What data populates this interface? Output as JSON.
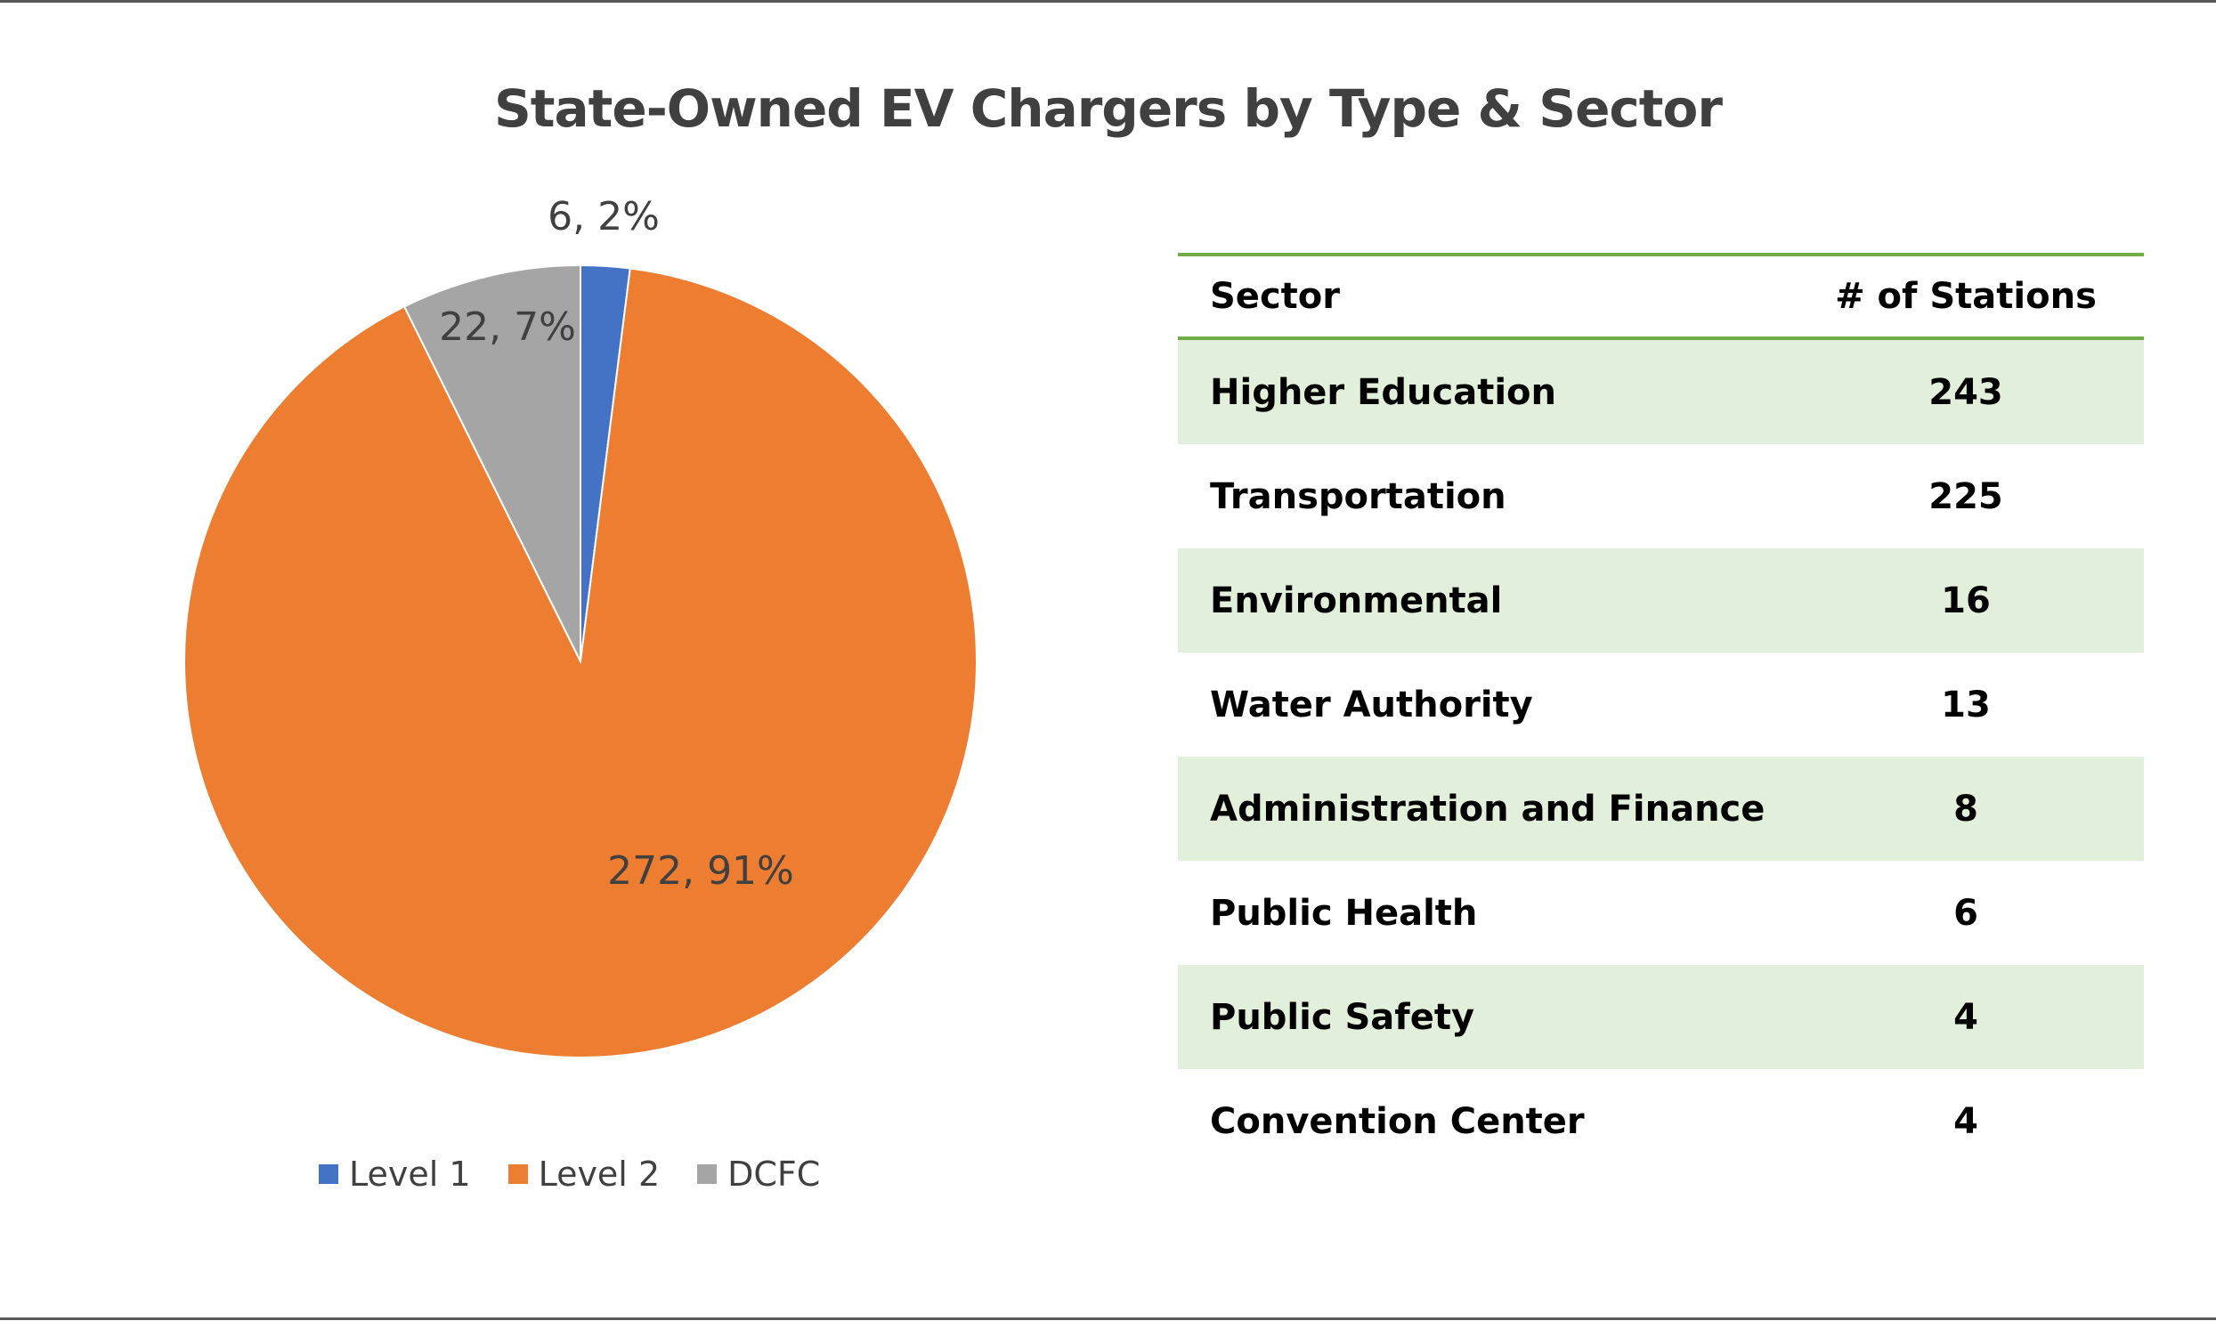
{
  "colors": {
    "level1": "#4472c4",
    "level2": "#ed7d31",
    "dcfc": "#a5a5a5",
    "table_accent": "#70ad47",
    "table_band": "#e2efda",
    "text": "#404040"
  },
  "chart_data": [
    {
      "type": "pie",
      "title": "State-Owned EV Chargers by Type & Sector",
      "categories": [
        "Level 1",
        "Level 2",
        "DCFC"
      ],
      "values": [
        6,
        272,
        22
      ],
      "data_labels": [
        "6, 2%",
        "272, 91%",
        "22, 7%"
      ],
      "legend_position": "bottom"
    },
    {
      "type": "table",
      "columns": [
        "Sector",
        "# of Stations"
      ],
      "rows": [
        {
          "sector": "Higher Education",
          "stations": "243"
        },
        {
          "sector": "Transportation",
          "stations": "225"
        },
        {
          "sector": "Environmental",
          "stations": "16"
        },
        {
          "sector": "Water Authority",
          "stations": "13"
        },
        {
          "sector": "Administration and Finance",
          "stations": "8"
        },
        {
          "sector": "Public Health",
          "stations": "6"
        },
        {
          "sector": "Public Safety",
          "stations": "4"
        },
        {
          "sector": "Convention Center",
          "stations": "4"
        }
      ]
    }
  ]
}
